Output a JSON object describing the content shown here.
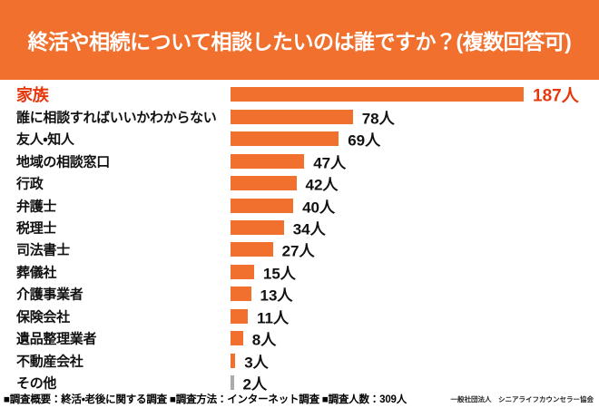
{
  "header": {
    "title": "終活や相続について相談したいのは誰ですか？(複数回答可)"
  },
  "chart_data": {
    "type": "bar",
    "orientation": "horizontal",
    "title": "終活や相続について相談したいのは誰ですか？(複数回答可)",
    "unit_suffix": "人",
    "xlim": [
      0,
      200
    ],
    "grid": false,
    "legend": false,
    "bars": [
      {
        "label": "家族",
        "value": 187,
        "emphasis": true
      },
      {
        "label": "誰に相談すればいいかわからない",
        "value": 78
      },
      {
        "label": "友人・知人",
        "value": 69
      },
      {
        "label": "地域の相談窓口",
        "value": 47
      },
      {
        "label": "行政",
        "value": 42
      },
      {
        "label": "弁護士",
        "value": 40
      },
      {
        "label": "税理士",
        "value": 34
      },
      {
        "label": "司法書士",
        "value": 27
      },
      {
        "label": "葬儀社",
        "value": 15
      },
      {
        "label": "介護事業者",
        "value": 13
      },
      {
        "label": "保険会社",
        "value": 11
      },
      {
        "label": "遺品整理業者",
        "value": 8
      },
      {
        "label": "不動産会社",
        "value": 3
      },
      {
        "label": "その他",
        "value": 2,
        "muted": true
      }
    ]
  },
  "footer": {
    "survey_summary": "■調査概要：終活・老後に関する調査 ■調査方法：インターネット調査 ■調査人数：309人",
    "credit": "一般社団法人　シニアライフカウンセラー協会"
  },
  "colors": {
    "accent_orange": "#F1702E",
    "emphasis_red": "#E7380D",
    "muted_gray": "#ABABAB",
    "text_black": "#111111",
    "header_text": "#FFFFFF",
    "background": "#FFFFFF"
  }
}
